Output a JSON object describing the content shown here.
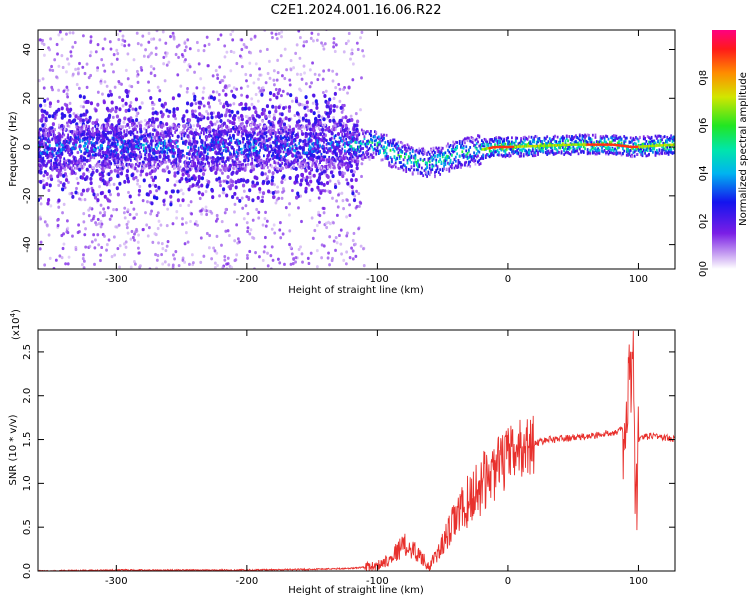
{
  "title": "C2E1.2024.001.16.06.R22",
  "chart_data": [
    {
      "type": "heatmap",
      "xlabel": "Height of straight line (km)",
      "ylabel": "Frequency (Hz)",
      "xlim": [
        -360,
        128
      ],
      "ylim": [
        -50,
        48
      ],
      "xticks": [
        -300,
        -200,
        -100,
        0,
        100
      ],
      "yticks": [
        -40,
        -20,
        0,
        20,
        40
      ],
      "colorbar": {
        "label": "Normalized spectral amplitude",
        "range": [
          0,
          1
        ],
        "ticks": [
          0.0,
          0.2,
          0.4,
          0.6,
          0.8
        ]
      },
      "ridge": [
        {
          "h": -350,
          "f": 0
        },
        {
          "h": -250,
          "f": 0
        },
        {
          "h": -150,
          "f": 0
        },
        {
          "h": -120,
          "f": 1
        },
        {
          "h": -100,
          "f": 1
        },
        {
          "h": -90,
          "f": -2
        },
        {
          "h": -80,
          "f": -4
        },
        {
          "h": -70,
          "f": -6
        },
        {
          "h": -60,
          "f": -7
        },
        {
          "h": -50,
          "f": -5
        },
        {
          "h": -40,
          "f": -3
        },
        {
          "h": -30,
          "f": -2
        },
        {
          "h": -20,
          "f": -1
        },
        {
          "h": -10,
          "f": 0
        },
        {
          "h": 0,
          "f": 0
        },
        {
          "h": 50,
          "f": 1
        },
        {
          "h": 80,
          "f": 1
        },
        {
          "h": 95,
          "f": 0
        },
        {
          "h": 128,
          "f": 1
        }
      ]
    },
    {
      "type": "line",
      "xlabel": "Height of straight line (km)",
      "ylabel": "SNR (10 * v/v)",
      "y_multiplier": "(x10",
      "y_multiplier_exponent": "4",
      "y_multiplier_close": ")",
      "xlim": [
        -360,
        128
      ],
      "ylim": [
        0,
        2.75
      ],
      "xticks": [
        -300,
        -200,
        -100,
        0,
        100
      ],
      "yticks": [
        "0.0",
        "0.5",
        "1.0",
        "1.5",
        "2.0",
        "2.5"
      ],
      "line_color": "#e8312d",
      "series": [
        {
          "x": [
            -360,
            -300,
            -200,
            -150,
            -120,
            -100,
            -90,
            -80,
            -70,
            -60,
            -50,
            -40,
            -30,
            -20,
            -10,
            0,
            10,
            20,
            30,
            50,
            70,
            85,
            90,
            93,
            96,
            98,
            100,
            110,
            128
          ],
          "y": [
            0.0,
            0.01,
            0.01,
            0.02,
            0.03,
            0.06,
            0.15,
            0.3,
            0.22,
            0.05,
            0.3,
            0.6,
            0.8,
            1.0,
            1.15,
            1.3,
            1.4,
            1.45,
            1.5,
            1.52,
            1.55,
            1.6,
            1.6,
            2.0,
            2.7,
            0.5,
            1.5,
            1.55,
            1.5
          ]
        }
      ]
    }
  ]
}
